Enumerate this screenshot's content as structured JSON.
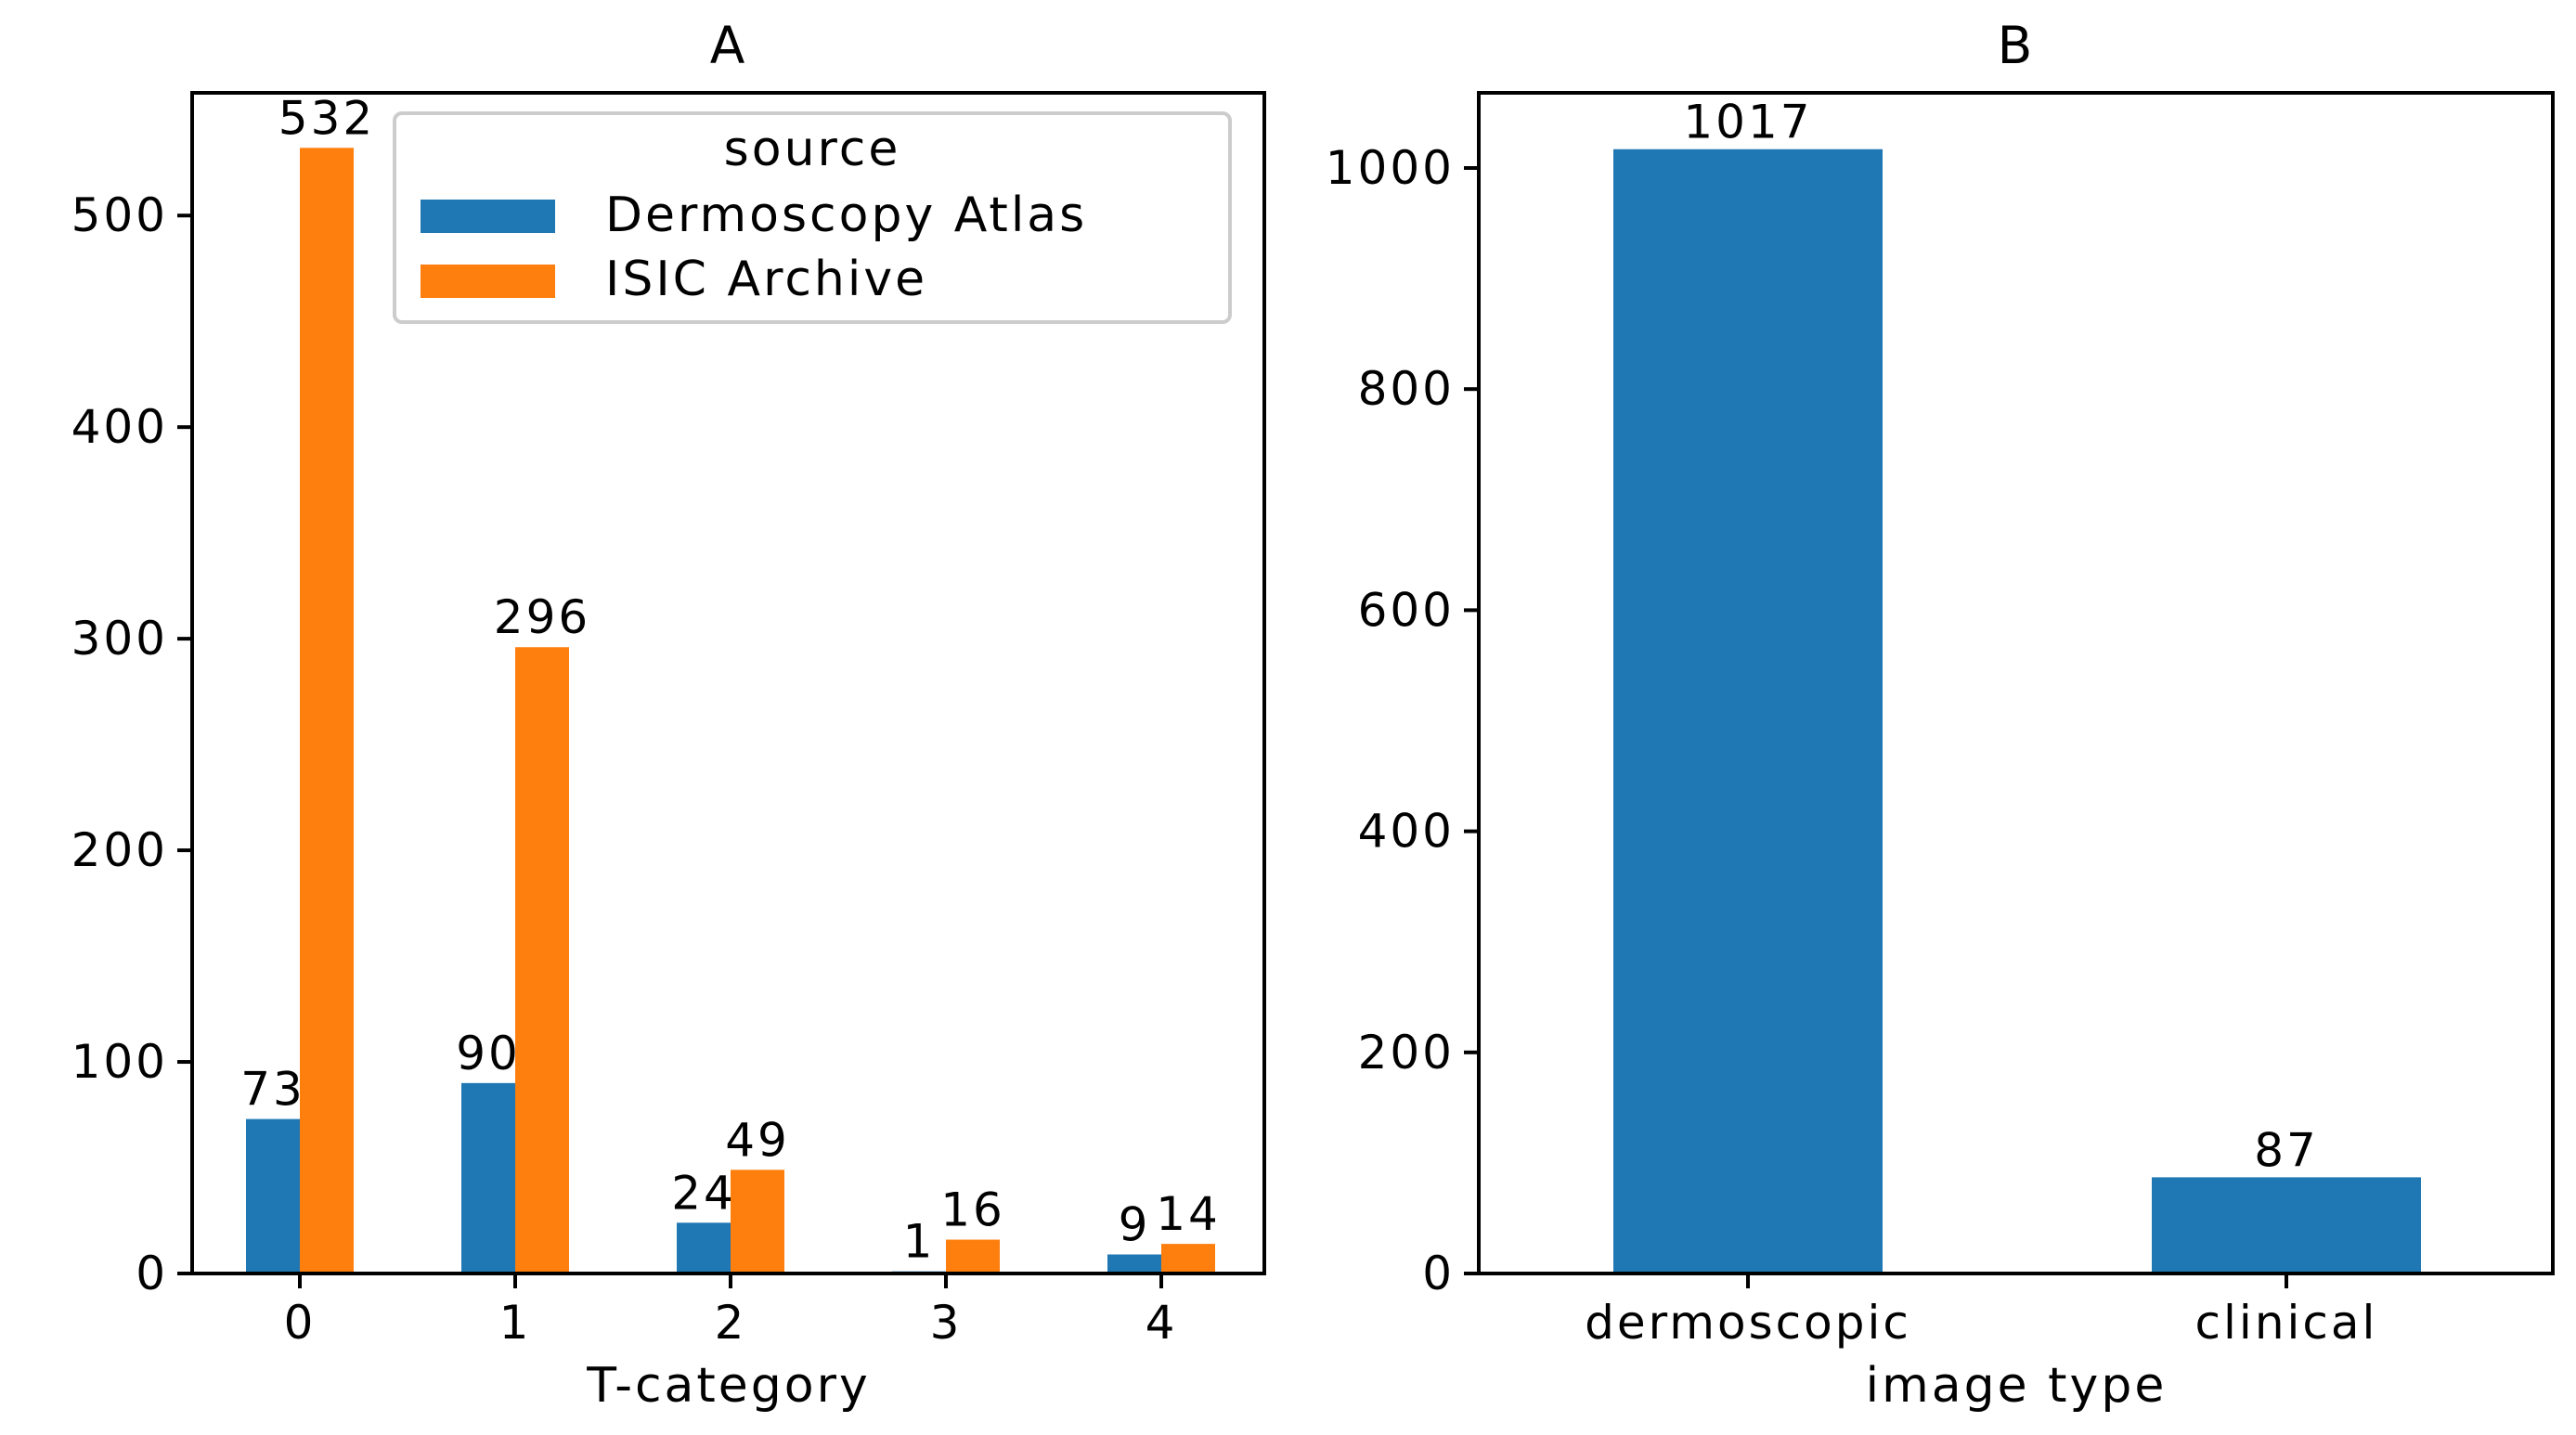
{
  "colors": {
    "dermoscopy_atlas": "#1f77b4",
    "isic_archive": "#ff7f0e",
    "axes": "#000000",
    "legend_border": "#cccccc"
  },
  "chart_data": [
    {
      "type": "bar",
      "title": "A",
      "xlabel": "T-category",
      "ylabel": "",
      "categories": [
        "0",
        "1",
        "2",
        "3",
        "4"
      ],
      "series": [
        {
          "name": "Dermoscopy Atlas",
          "values": [
            73,
            90,
            24,
            1,
            9
          ],
          "labels": [
            "73",
            "90",
            "24",
            "1",
            "9"
          ]
        },
        {
          "name": "ISIC Archive",
          "values": [
            532,
            296,
            49,
            16,
            14
          ],
          "labels": [
            "532",
            "296",
            "49",
            "16",
            "14"
          ]
        }
      ],
      "ylim": [
        0,
        558
      ],
      "yticks": [
        0,
        100,
        200,
        300,
        400,
        500
      ],
      "ytick_labels": [
        "0",
        "100",
        "200",
        "300",
        "400",
        "500"
      ],
      "legend": {
        "title": "source",
        "placement": "top-right"
      },
      "grid": false
    },
    {
      "type": "bar",
      "title": "B",
      "xlabel": "image type",
      "ylabel": "",
      "categories": [
        "dermoscopic",
        "clinical"
      ],
      "series": [
        {
          "values": [
            1017,
            87
          ],
          "labels": [
            "1017",
            "87"
          ]
        }
      ],
      "ylim": [
        0,
        1068
      ],
      "yticks": [
        0,
        200,
        400,
        600,
        800,
        1000
      ],
      "ytick_labels": [
        "0",
        "200",
        "400",
        "600",
        "800",
        "1000"
      ],
      "grid": false
    }
  ]
}
